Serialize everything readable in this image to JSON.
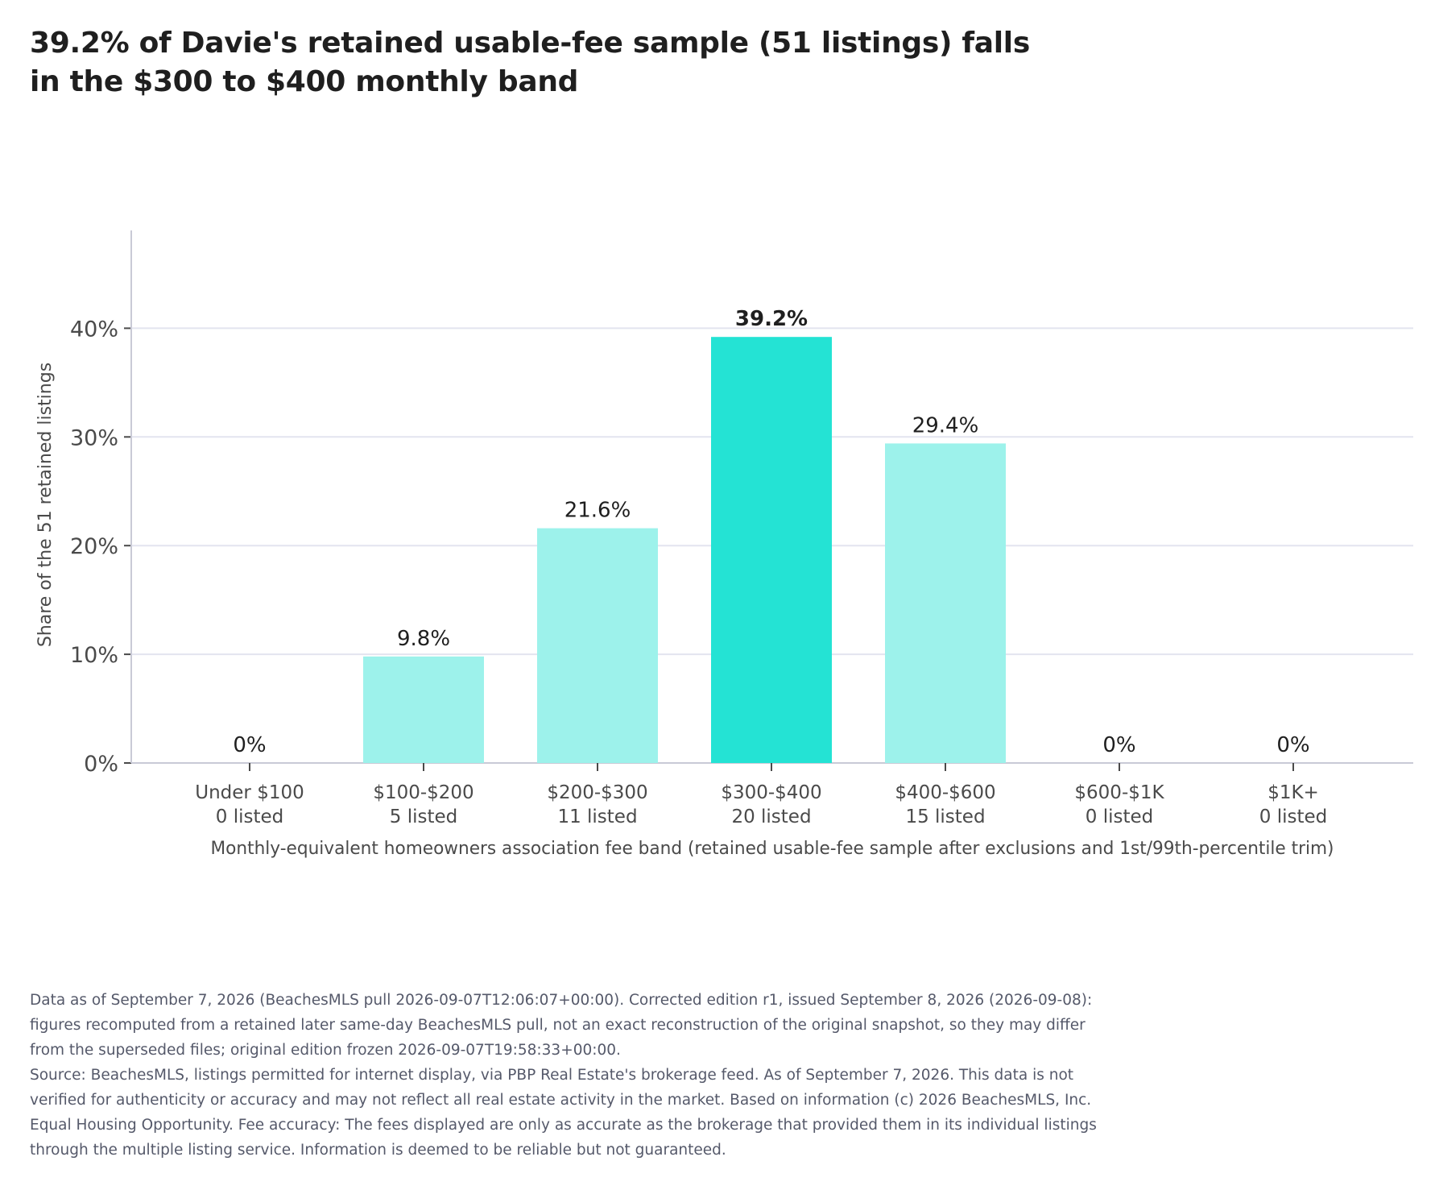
{
  "title": "39.2% of Davie's retained usable-fee sample (51 listings) falls in the $300 to $400 monthly band",
  "notes": {
    "data_note": "Data as of September 7, 2026 (BeachesMLS pull 2026-09-07T12:06:07+00:00). Corrected edition r1, issued September 8, 2026 (2026-09-08): figures recomputed from a retained later same-day BeachesMLS pull, not an exact reconstruction of the original snapshot, so they may differ from the superseded files; original edition frozen 2026-09-07T19:58:33+00:00.",
    "source_note": "Source: BeachesMLS, listings permitted for internet display, via PBP Real Estate's brokerage feed. As of September 7, 2026. This data is not verified for authenticity or accuracy and may not reflect all real estate activity in the market. Based on information (c) 2026 BeachesMLS, Inc. Equal Housing Opportunity. Fee accuracy: The fees displayed are only as accurate as the brokerage that provided them in its individual listings through the multiple listing service. Information is deemed to be reliable but not guaranteed."
  },
  "chart_data": {
    "type": "bar",
    "categories": [
      "Under $100",
      "$100-$200",
      "$200-$300",
      "$300-$400",
      "$400-$600",
      "$600-$1K",
      "$1K+"
    ],
    "counts": [
      "0 listed",
      "5 listed",
      "11 listed",
      "20 listed",
      "15 listed",
      "0 listed",
      "0 listed"
    ],
    "values": [
      0,
      9.8,
      21.6,
      39.2,
      29.4,
      0,
      0
    ],
    "data_labels": [
      "0%",
      "9.8%",
      "21.6%",
      "39.2%",
      "29.4%",
      "0%",
      "0%"
    ],
    "highlight_index": 3,
    "xlabel": "Monthly-equivalent homeowners association fee band (retained usable-fee sample after exclusions and 1st/99th-percentile trim)",
    "ylabel": "Share of the 51 retained listings",
    "ylim": [
      0,
      49
    ],
    "yticks": [
      0,
      10,
      20,
      30,
      40
    ],
    "ytick_labels": [
      "0%",
      "10%",
      "20%",
      "30%",
      "40%"
    ],
    "grid": true,
    "colors": {
      "bar": "#9df2eb",
      "highlight": "#24e3d4",
      "grid": "#e3e4ef",
      "axis": "#c9cad6",
      "text": "#1f1f1f",
      "tick_text": "#4a4a4a"
    }
  }
}
